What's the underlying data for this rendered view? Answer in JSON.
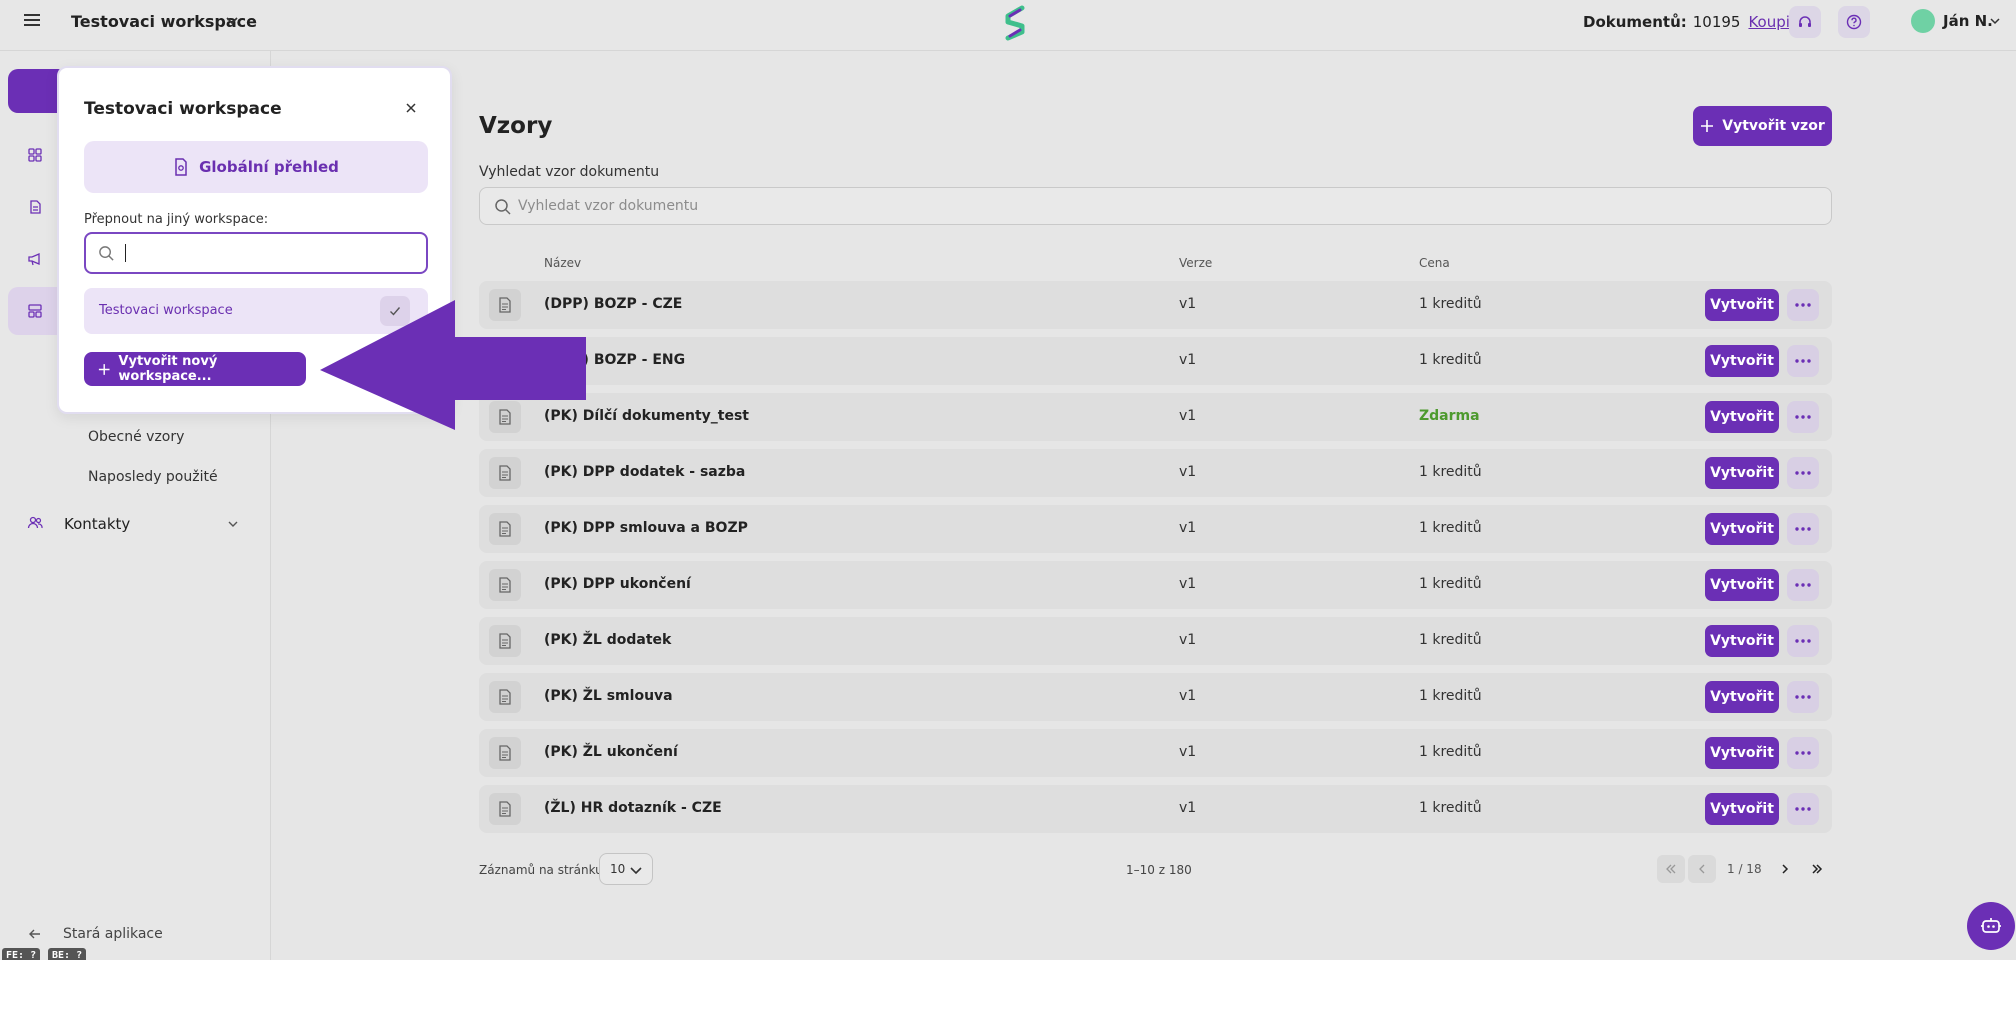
{
  "header": {
    "workspace_title": "Testovaci workspace",
    "docs_label": "Dokumentů:",
    "docs_count": "10195",
    "buy_link": "Koupit",
    "user_name": "Ján N.",
    "icons": [
      "menu-icon",
      "chevron-down-icon",
      "headset-icon",
      "help-icon",
      "avatar"
    ]
  },
  "sidebar": {
    "sub_items": [
      "Obecné vzory",
      "Naposledy použité"
    ],
    "contacts_label": "Kontakty",
    "old_app_label": "Stará aplikace",
    "badges": [
      "FE: ?",
      "BE: ?"
    ]
  },
  "main": {
    "title": "Vzory",
    "create_button": "Vytvořit vzor",
    "search_label": "Vyhledat vzor dokumentu",
    "search_placeholder": "Vyhledat vzor dokumentu",
    "columns": {
      "name": "Název",
      "version": "Verze",
      "price": "Cena"
    },
    "rows": [
      {
        "name": "(DPP) BOZP - CZE",
        "version": "v1",
        "price": "1 kreditů",
        "free": false
      },
      {
        "name": "(DPP) BOZP - ENG",
        "version": "v1",
        "price": "1 kreditů",
        "free": false
      },
      {
        "name": "(PK) Dílčí dokumenty_test",
        "version": "v1",
        "price": "Zdarma",
        "free": true
      },
      {
        "name": "(PK) DPP dodatek - sazba",
        "version": "v1",
        "price": "1 kreditů",
        "free": false
      },
      {
        "name": "(PK) DPP smlouva a BOZP",
        "version": "v1",
        "price": "1 kreditů",
        "free": false
      },
      {
        "name": "(PK) DPP ukončení",
        "version": "v1",
        "price": "1 kreditů",
        "free": false
      },
      {
        "name": "(PK) ŽL dodatek",
        "version": "v1",
        "price": "1 kreditů",
        "free": false
      },
      {
        "name": "(PK) ŽL smlouva",
        "version": "v1",
        "price": "1 kreditů",
        "free": false
      },
      {
        "name": "(PK) ŽL ukončení",
        "version": "v1",
        "price": "1 kreditů",
        "free": false
      },
      {
        "name": "(ŽL) HR dotazník - CZE",
        "version": "v1",
        "price": "1 kreditů",
        "free": false
      }
    ],
    "row_button": "Vytvořit",
    "per_page_label": "Záznamů na stránku:",
    "per_page_value": "10",
    "range_text": "1–10 z 180",
    "page_indicator": "1 / 18"
  },
  "popover": {
    "title": "Testovaci workspace",
    "global_button": "Globální přehled",
    "switch_label": "Přepnout na jiný workspace:",
    "workspace_item": "Testovaci workspace",
    "new_workspace_button": "Vytvořit nový workspace..."
  },
  "colors": {
    "accent": "#6b2fb5",
    "accent_light": "#ece4f7",
    "free_price": "#4d9a2e",
    "background": "#e6e6e6"
  }
}
